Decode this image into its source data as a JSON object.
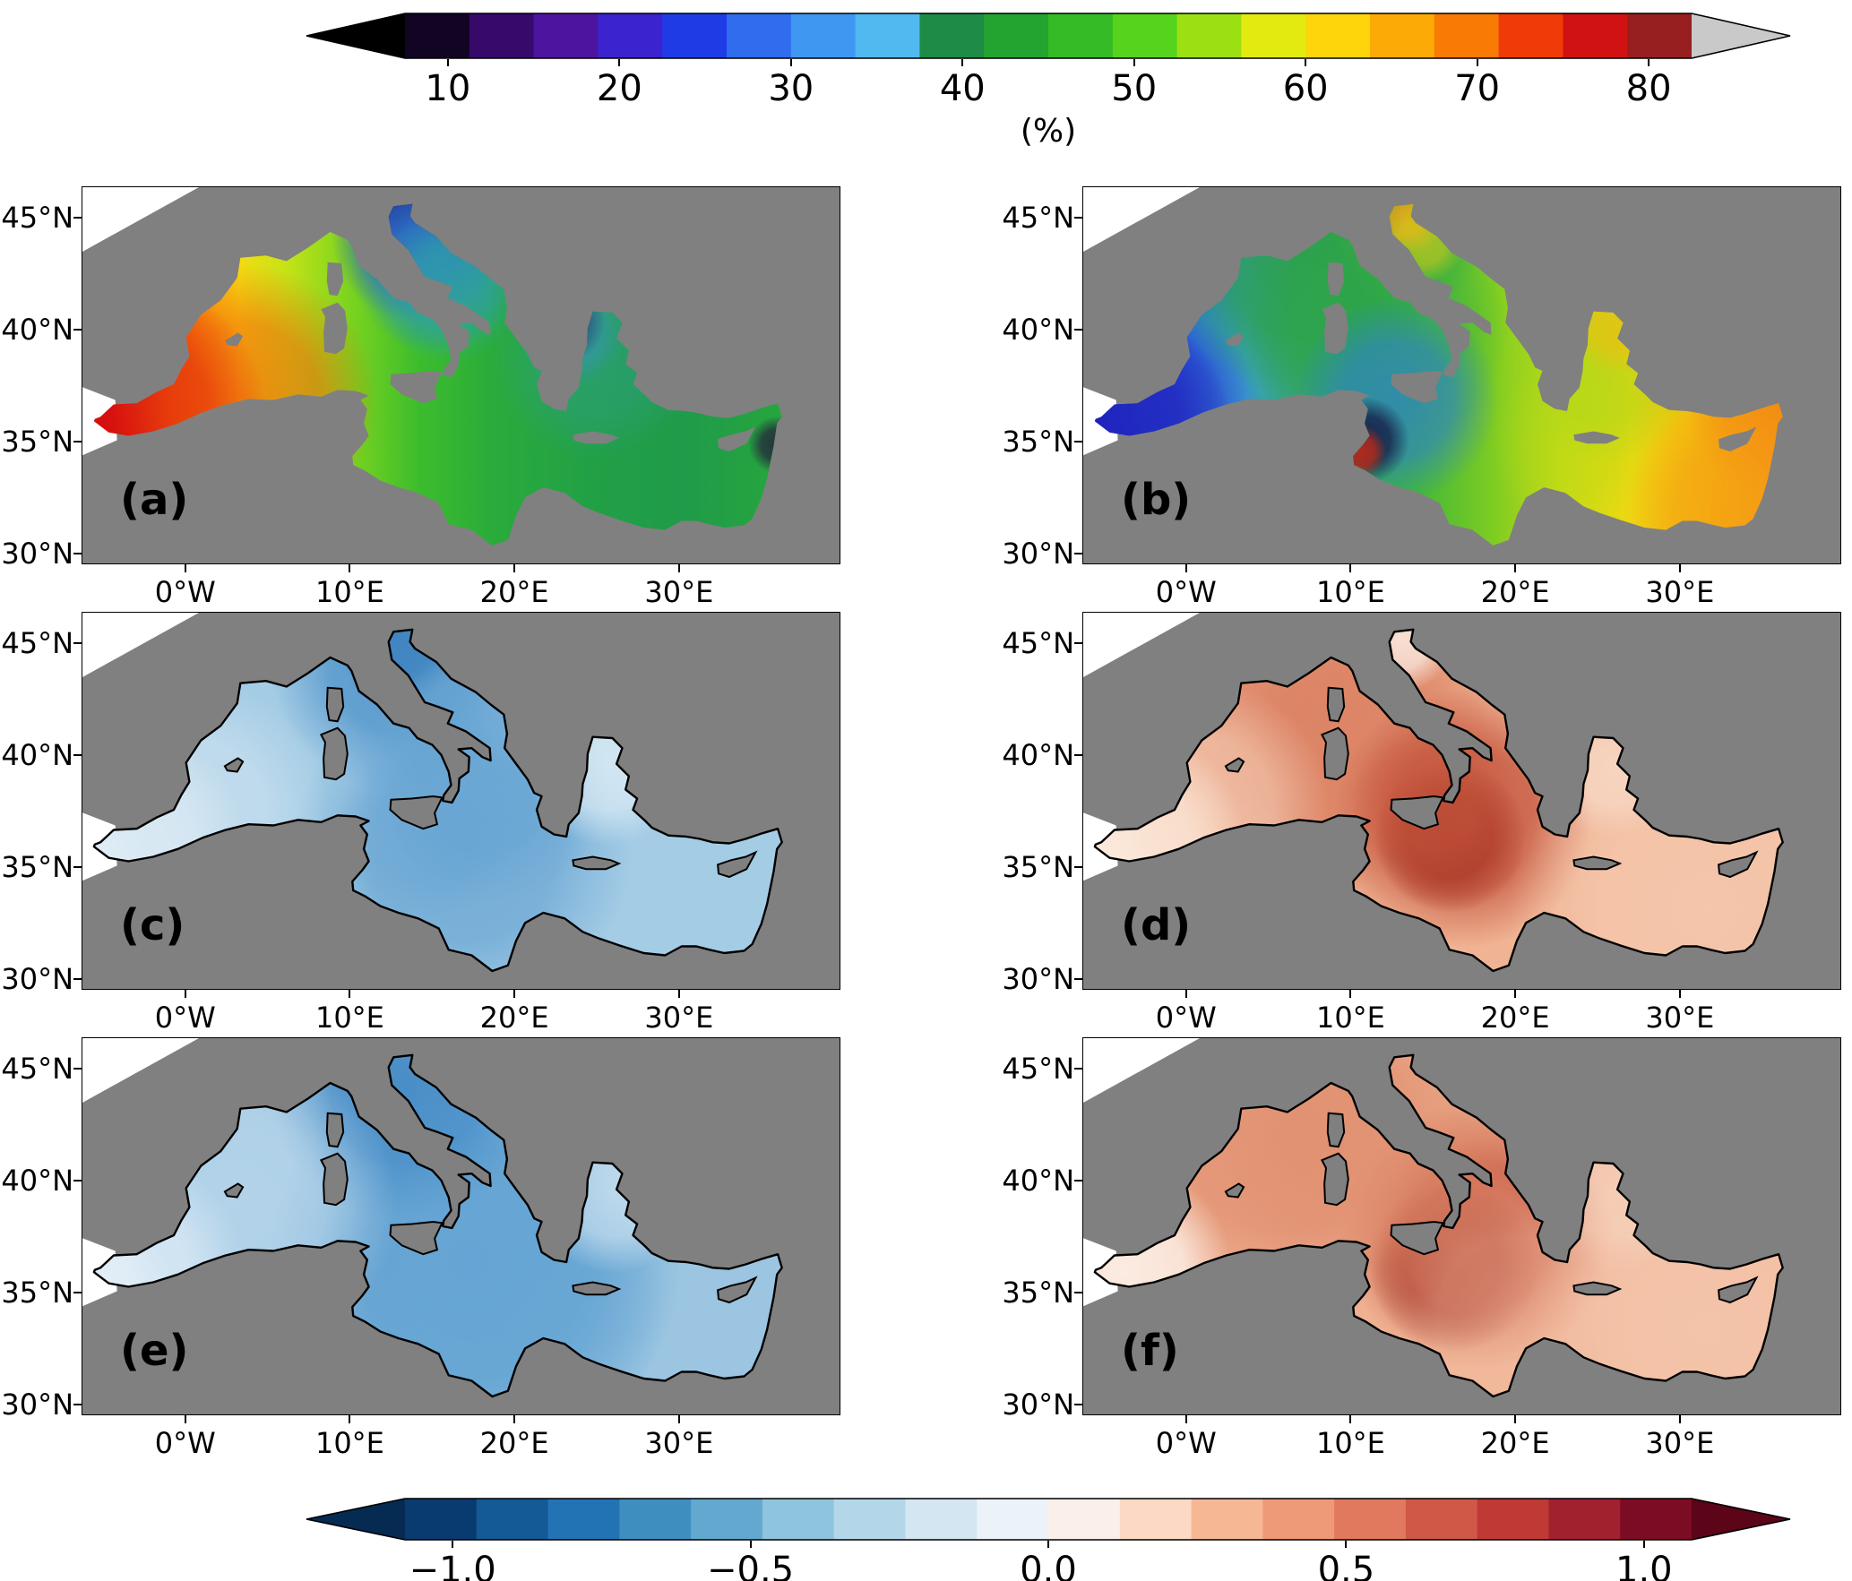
{
  "figure": {
    "background": "#ffffff",
    "land_color": "#808080",
    "no_data_color": "#ffffff"
  },
  "colorbar_top": {
    "label": "(%)",
    "tick_labels": [
      "10",
      "20",
      "30",
      "40",
      "50",
      "60",
      "70",
      "80"
    ],
    "tick_values": [
      10,
      20,
      30,
      40,
      50,
      60,
      70,
      80
    ],
    "vmin": 7.5,
    "vmax": 82.5,
    "under_color": "#000000",
    "over_color": "#c9c9c9",
    "colors": [
      "#120423",
      "#37096b",
      "#4d14a0",
      "#3b23cf",
      "#1e3be6",
      "#2f6cee",
      "#3f97f2",
      "#52b9f0",
      "#1e8c46",
      "#23a330",
      "#35bb26",
      "#55d31d",
      "#9ce014",
      "#e3ea10",
      "#fdd50a",
      "#fcab06",
      "#f97a05",
      "#ef3b07",
      "#d01212",
      "#971f1f"
    ]
  },
  "colorbar_bottom": {
    "label": "",
    "tick_labels": [
      "−1.0",
      "−0.5",
      "0.0",
      "0.5",
      "1.0"
    ],
    "tick_values": [
      -1,
      -0.5,
      0,
      0.5,
      1
    ],
    "vmin": -1.08,
    "vmax": 1.08,
    "under_color": "#062b52",
    "over_color": "#5c0418",
    "colors": [
      "#0a3b70",
      "#135a96",
      "#2273b4",
      "#3f8ec0",
      "#63a8cf",
      "#8ec4dd",
      "#b3d7e9",
      "#d3e6f1",
      "#ecf3f8",
      "#fbf0e9",
      "#fbd9c5",
      "#f6b795",
      "#ef9a76",
      "#e0795d",
      "#d05847",
      "#bf3935",
      "#a2212f",
      "#7c0c24"
    ]
  },
  "axes": {
    "x_ticks": [
      {
        "label": "0°W",
        "lon": 0
      },
      {
        "label": "10°E",
        "lon": 10
      },
      {
        "label": "20°E",
        "lon": 20
      },
      {
        "label": "30°E",
        "lon": 30
      }
    ],
    "y_ticks": [
      {
        "label": "45°N",
        "lat": 45
      },
      {
        "label": "40°N",
        "lat": 40
      },
      {
        "label": "35°N",
        "lat": 35
      },
      {
        "label": "30°N",
        "lat": 30
      }
    ]
  },
  "panels": [
    {
      "id": "a",
      "label": "(a)"
    },
    {
      "id": "b",
      "label": "(b)"
    },
    {
      "id": "c",
      "label": "(c)"
    },
    {
      "id": "d",
      "label": "(d)"
    },
    {
      "id": "e",
      "label": "(e)"
    },
    {
      "id": "f",
      "label": "(f)"
    }
  ],
  "render": {
    "panels": {
      "a": {
        "kind": "gradient",
        "stroke": false,
        "stops": [
          [
            0,
            "#cf1010"
          ],
          [
            0.06,
            "#e82c0c"
          ],
          [
            0.11,
            "#f6680b"
          ],
          [
            0.16,
            "#fbab0d"
          ],
          [
            0.21,
            "#f5dc12"
          ],
          [
            0.28,
            "#c4e317"
          ],
          [
            0.37,
            "#7cd41f"
          ],
          [
            0.47,
            "#3dbd2c"
          ],
          [
            0.58,
            "#2aab3b"
          ],
          [
            0.72,
            "#22a046"
          ],
          [
            0.86,
            "#1f9b49"
          ],
          [
            1,
            "#27a63e"
          ]
        ],
        "blobs": [
          {
            "lon": 13.1,
            "lat": 45.3,
            "r": 65,
            "c": "#2a0845",
            "o": 0.95
          },
          {
            "lon": 13.65,
            "lat": 45.65,
            "r": 40,
            "c": "#0a0a0a",
            "o": 0.9
          },
          {
            "lon": 14.0,
            "lat": 44.2,
            "r": 95,
            "c": "#2b50d4",
            "o": 0.85
          },
          {
            "lon": 15.2,
            "lat": 42.8,
            "r": 95,
            "c": "#2f86c8",
            "o": 0.7
          },
          {
            "lon": 15.9,
            "lat": 41.9,
            "r": 85,
            "c": "#2fa8a0",
            "o": 0.6
          },
          {
            "lon": 24.8,
            "lat": 38.8,
            "r": 115,
            "c": "#2f9f8a",
            "o": 0.5
          },
          {
            "lon": 23.0,
            "lat": 40.35,
            "r": 45,
            "c": "#1a0a30",
            "o": 0.8
          },
          {
            "lon": 23.4,
            "lat": 39.9,
            "r": 60,
            "c": "#3f8fd0",
            "o": 0.5
          },
          {
            "lon": -3.0,
            "lat": 36.4,
            "r": 145,
            "c": "#d50f0f",
            "o": 0.85
          },
          {
            "lon": 3.5,
            "lat": 37.0,
            "r": 150,
            "c": "#f2570b",
            "o": 0.6
          },
          {
            "lon": 35.9,
            "lat": 34.9,
            "r": 32,
            "c": "#23053a",
            "o": 0.7
          }
        ]
      },
      "b": {
        "kind": "gradient",
        "stroke": false,
        "stops": [
          [
            0,
            "#1b1fc4"
          ],
          [
            0.07,
            "#2547dc"
          ],
          [
            0.14,
            "#2e78d8"
          ],
          [
            0.22,
            "#3ba0cf"
          ],
          [
            0.3,
            "#36a37a"
          ],
          [
            0.38,
            "#2fa751"
          ],
          [
            0.47,
            "#44b838"
          ],
          [
            0.58,
            "#7ecc22"
          ],
          [
            0.68,
            "#c6dc16"
          ],
          [
            0.78,
            "#eed911"
          ],
          [
            0.88,
            "#f4b90e"
          ],
          [
            1,
            "#f49313"
          ]
        ],
        "blobs": [
          {
            "lon": -4.2,
            "lat": 36.0,
            "r": 125,
            "c": "#1414ad",
            "o": 0.9
          },
          {
            "lon": -1.5,
            "lat": 36.6,
            "r": 110,
            "c": "#2a35cc",
            "o": 0.6
          },
          {
            "lon": 7.0,
            "lat": 43.2,
            "r": 155,
            "c": "#2a9d45",
            "o": 0.8
          },
          {
            "lon": 11.0,
            "lat": 39.8,
            "r": 155,
            "c": "#2fa84a",
            "o": 0.6
          },
          {
            "lon": 12.7,
            "lat": 36.9,
            "r": 115,
            "c": "#2f7fd2",
            "o": 0.7
          },
          {
            "lon": 10.9,
            "lat": 35.1,
            "r": 48,
            "c": "#14143f",
            "o": 0.85
          },
          {
            "lon": 10.5,
            "lat": 34.6,
            "r": 30,
            "c": "#d42a10",
            "o": 0.8
          },
          {
            "lon": 13.6,
            "lat": 44.6,
            "r": 90,
            "c": "#3bac42",
            "o": 0.7
          },
          {
            "lon": 13.2,
            "lat": 45.35,
            "r": 48,
            "c": "#f59d15",
            "o": 0.8
          },
          {
            "lon": 14.3,
            "lat": 44.0,
            "r": 48,
            "c": "#e8cf14",
            "o": 0.6
          },
          {
            "lon": 25.2,
            "lat": 38.6,
            "r": 115,
            "c": "#9cd41d",
            "o": 0.5
          },
          {
            "lon": 26.3,
            "lat": 40.4,
            "r": 60,
            "c": "#f2bb12",
            "o": 0.6
          },
          {
            "lon": 35.3,
            "lat": 36.4,
            "r": 90,
            "c": "#f28a12",
            "o": 0.7
          },
          {
            "lon": 33.5,
            "lat": 31.9,
            "r": 130,
            "c": "#f59d15",
            "o": 0.6
          },
          {
            "lon": 23.5,
            "lat": 35.0,
            "r": 95,
            "c": "#b8d816",
            "o": 0.4
          }
        ]
      },
      "c": {
        "kind": "flat",
        "base": "#a4cce5",
        "stroke": true,
        "blobs": [
          {
            "lon": 13.2,
            "lat": 44.3,
            "r": 150,
            "c": "#4a90c8",
            "o": 0.85
          },
          {
            "lon": 12.9,
            "lat": 45.2,
            "r": 70,
            "c": "#3a7fbe",
            "o": 0.8
          },
          {
            "lon": 18.2,
            "lat": 39.0,
            "r": 140,
            "c": "#6ea9d6",
            "o": 0.7
          },
          {
            "lon": 16.8,
            "lat": 35.8,
            "r": 190,
            "c": "#5f9fd0",
            "o": 0.7
          },
          {
            "lon": 14.5,
            "lat": 36.6,
            "r": 100,
            "c": "#6aa6d4",
            "o": 0.6
          },
          {
            "lon": -3.6,
            "lat": 36.1,
            "r": 130,
            "c": "#eef5fa",
            "o": 0.95
          },
          {
            "lon": 0.5,
            "lat": 37.5,
            "r": 150,
            "c": "#cfe3f0",
            "o": 0.7
          },
          {
            "lon": 25.6,
            "lat": 39.6,
            "r": 90,
            "c": "#ddecf5",
            "o": 0.8
          }
        ]
      },
      "d": {
        "kind": "flat",
        "base": "#f0b494",
        "stroke": true,
        "blobs": [
          {
            "lon": 6.5,
            "lat": 42.3,
            "r": 220,
            "c": "#dd8465",
            "o": 0.8
          },
          {
            "lon": 10.5,
            "lat": 40.0,
            "r": 180,
            "c": "#d97c5e",
            "o": 0.6
          },
          {
            "lon": 16.0,
            "lat": 36.4,
            "r": 85,
            "c": "#7e150e",
            "o": 0.95
          },
          {
            "lon": 16.8,
            "lat": 37.2,
            "r": 145,
            "c": "#bf4a34",
            "o": 0.8
          },
          {
            "lon": 14.8,
            "lat": 37.9,
            "r": 90,
            "c": "#c85a40",
            "o": 0.5
          },
          {
            "lon": -3.6,
            "lat": 36.1,
            "r": 130,
            "c": "#fdf2ea",
            "o": 0.95
          },
          {
            "lon": 1.0,
            "lat": 37.8,
            "r": 140,
            "c": "#f8d8c2",
            "o": 0.6
          },
          {
            "lon": 31.5,
            "lat": 33.2,
            "r": 220,
            "c": "#f6cdb5",
            "o": 0.7
          },
          {
            "lon": 12.9,
            "lat": 45.2,
            "r": 60,
            "c": "#fdf3ec",
            "o": 0.8
          },
          {
            "lon": 25.8,
            "lat": 39.6,
            "r": 80,
            "c": "#f9e0cf",
            "o": 0.7
          }
        ]
      },
      "e": {
        "kind": "flat",
        "base": "#9bc5e1",
        "stroke": true,
        "blobs": [
          {
            "lon": 13.3,
            "lat": 44.1,
            "r": 150,
            "c": "#3f86c4",
            "o": 0.9
          },
          {
            "lon": 17.5,
            "lat": 36.3,
            "r": 230,
            "c": "#4f95cc",
            "o": 0.8
          },
          {
            "lon": 19.5,
            "lat": 35.0,
            "r": 180,
            "c": "#6aa9d6",
            "o": 0.6
          },
          {
            "lon": -3.6,
            "lat": 36.1,
            "r": 130,
            "c": "#edf4fa",
            "o": 0.95
          },
          {
            "lon": 3.0,
            "lat": 39.0,
            "r": 180,
            "c": "#c2dcee",
            "o": 0.6
          },
          {
            "lon": 26.0,
            "lat": 39.5,
            "r": 90,
            "c": "#d6e8f3",
            "o": 0.7
          }
        ]
      },
      "f": {
        "kind": "flat",
        "base": "#efb192",
        "stroke": true,
        "blobs": [
          {
            "lon": 16.2,
            "lat": 36.2,
            "r": 95,
            "c": "#83150f",
            "o": 0.95
          },
          {
            "lon": 17.6,
            "lat": 37.6,
            "r": 150,
            "c": "#c04a35",
            "o": 0.8
          },
          {
            "lon": 5.5,
            "lat": 42.0,
            "r": 190,
            "c": "#dd8868",
            "o": 0.7
          },
          {
            "lon": 11.5,
            "lat": 41.5,
            "r": 170,
            "c": "#df8f6f",
            "o": 0.6
          },
          {
            "lon": -3.8,
            "lat": 36.0,
            "r": 120,
            "c": "#fdf2ea",
            "o": 0.9
          },
          {
            "lon": 31.5,
            "lat": 33.5,
            "r": 200,
            "c": "#f5ccb4",
            "o": 0.7
          },
          {
            "lon": 26.0,
            "lat": 39.5,
            "r": 90,
            "c": "#f8dcc9",
            "o": 0.6
          },
          {
            "lon": 20.0,
            "lat": 34.0,
            "r": 160,
            "c": "#f3c1a6",
            "o": 0.5
          }
        ]
      }
    }
  },
  "chart_data": {
    "type": "heatmap",
    "subtype": "geographic map grid (Mediterranean Sea), 3 rows x 2 columns",
    "x_axis": {
      "tick_labels": [
        "0°W",
        "10°E",
        "20°E",
        "30°E"
      ],
      "range_lon": [
        -6.3,
        39.7
      ]
    },
    "y_axis": {
      "tick_labels": [
        "45°N",
        "40°N",
        "35°N",
        "30°N"
      ],
      "range_lat": [
        29.6,
        46.4
      ]
    },
    "colorbars": [
      {
        "position": "top",
        "applies_to": [
          "(a)",
          "(b)"
        ],
        "units": "(%)",
        "ticks": [
          10,
          20,
          30,
          40,
          50,
          60,
          70,
          80
        ],
        "palette": "multicolor rainbow: black/purple/blue/light-blue/green/yellow/orange/red with black under-arrow and grey over-arrow"
      },
      {
        "position": "bottom",
        "applies_to": [
          "(c)",
          "(d)",
          "(e)",
          "(f)"
        ],
        "units": "",
        "ticks": [
          -1.0,
          -0.5,
          0.0,
          0.5,
          1.0
        ],
        "palette": "diverging blue-white-red with dark-navy under-arrow and dark-maroon over-arrow"
      }
    ],
    "panels": [
      {
        "label": "(a)",
        "colorbar": "top",
        "pattern": "70-80% in the Alboran Sea and along the Algerian coast, 55-65% around the Balearics and Gulf of Lion, 45-55% in the Tyrrhenian, 40-50% across the Ionian and Levantine basins, <20% (purple/black) patches in the northern Adriatic and blue patches in the mid Adriatic and Aegean"
      },
      {
        "label": "(b)",
        "colorbar": "top",
        "pattern": "20-30% (dark blue) in the Alboran Sea, 30-40% in the western basin, 45-55% (green) in the NW Mediterranean, Tyrrhenian and Adriatic, 55-65% (yellow) in the Ionian and Aegean, up to 65-75% (orange) in the eastern Levantine and along south-eastern coasts"
      },
      {
        "label": "(c)",
        "colorbar": "bottom",
        "pattern": "negative values about -0.2 to -0.4 over most of the basin, locally about -0.6 in the Adriatic and south of Sicily; near zero (white) in the Alboran Sea"
      },
      {
        "label": "(d)",
        "colorbar": "bottom",
        "pattern": "positive values about 0.3 to 0.5 over most of the basin, strongest 0.8-1.0 south-east of Sicily, enhanced in the NW Mediterranean; near zero in the Alboran Sea"
      },
      {
        "label": "(e)",
        "colorbar": "bottom",
        "pattern": "negative values about -0.2 to -0.5, darkest in the central Adriatic and the central Ionian south of Italy"
      },
      {
        "label": "(f)",
        "colorbar": "bottom",
        "pattern": "positive values about 0.3 to 0.5, with a dark maximum about 0.8 south-east of Sicily and enhanced values in the NW Mediterranean"
      }
    ],
    "map_legend": {
      "grey": "land",
      "white": "no data / outside domain",
      "black_contour": "coastline (panels c-f only)"
    }
  }
}
